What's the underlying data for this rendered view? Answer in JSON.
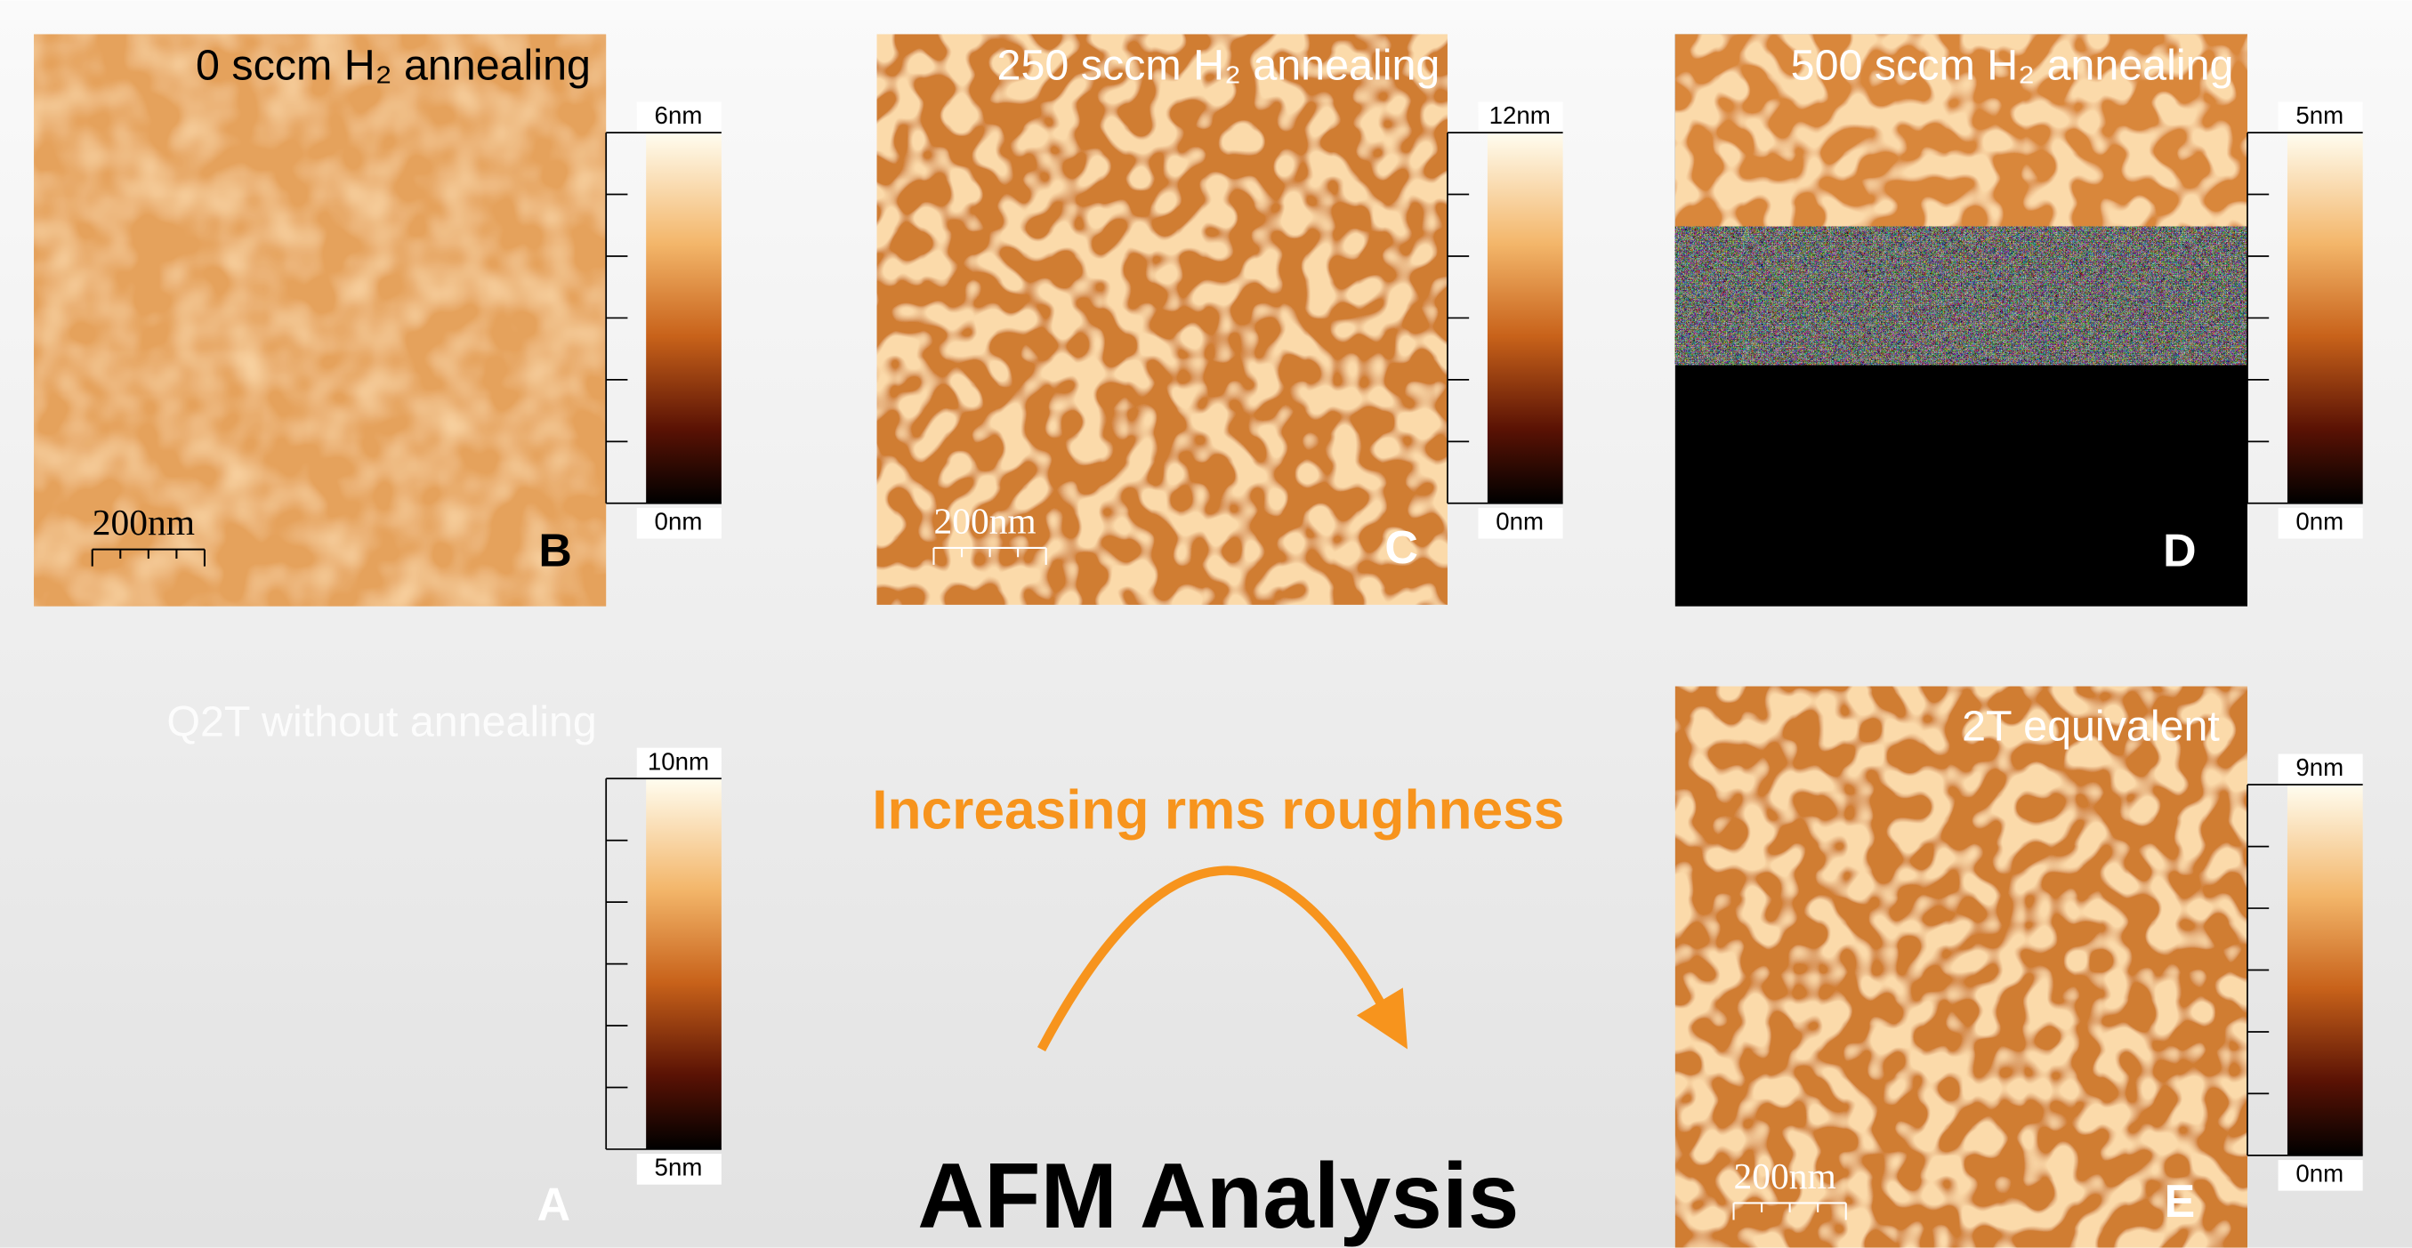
{
  "panels": [
    {
      "label": "B",
      "title": "0 sccm H₂ annealing",
      "scale_bar": "200nm",
      "colorbar": {
        "max": "6nm",
        "min": "0nm"
      }
    },
    {
      "label": "C",
      "title": "250 sccm H₂ annealing",
      "scale_bar": "200nm",
      "colorbar": {
        "max": "12nm",
        "min": "0nm"
      }
    },
    {
      "label": "D",
      "title": "500 sccm H₂ annealing",
      "colorbar": {
        "max": "5nm",
        "min": "0nm"
      }
    },
    {
      "label": "A",
      "title": "Q2T without annealing",
      "colorbar": {
        "max": "10nm",
        "min": "5nm"
      }
    },
    {
      "label": "E",
      "title": "2T equivalent",
      "scale_bar": "200nm",
      "colorbar": {
        "max": "9nm",
        "min": "0nm"
      }
    }
  ],
  "trend": "Increasing rms roughness",
  "heading": "AFM Analysis"
}
